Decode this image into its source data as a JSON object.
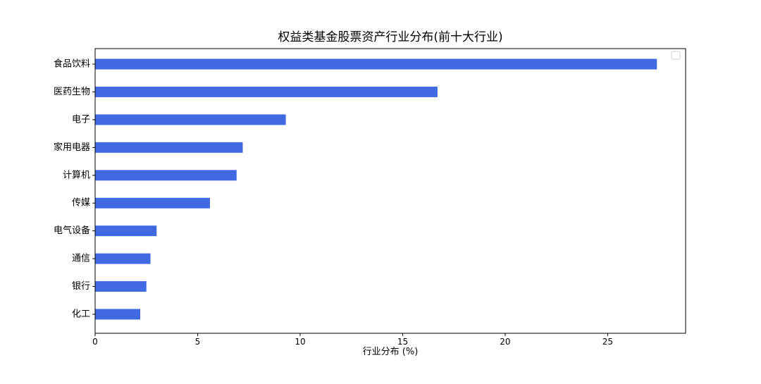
{
  "chart_data": {
    "type": "bar",
    "orientation": "horizontal",
    "title": "权益类基金股票资产行业分布(前十大行业)",
    "xlabel": "行业分布 (%)",
    "ylabel": "",
    "categories": [
      "食品饮料",
      "医药生物",
      "电子",
      "家用电器",
      "计算机",
      "传媒",
      "电气设备",
      "通信",
      "银行",
      "化工"
    ],
    "values": [
      27.4,
      16.7,
      9.3,
      7.2,
      6.9,
      5.6,
      3.0,
      2.7,
      2.5,
      2.2
    ],
    "xlim": [
      0,
      28.8
    ],
    "xticks": [
      0,
      5,
      10,
      15,
      20,
      25
    ],
    "bar_color": "#4169E1",
    "grid": false,
    "legend": "top-right, empty"
  }
}
